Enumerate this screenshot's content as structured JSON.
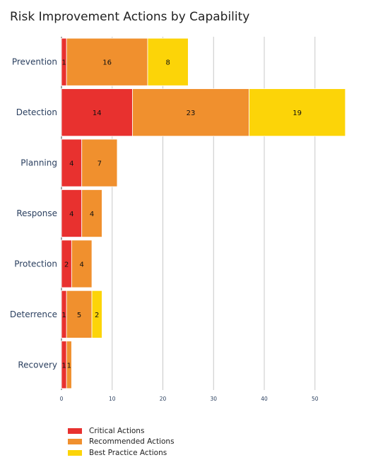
{
  "chart_data": {
    "type": "bar",
    "orientation": "horizontal",
    "stacked": true,
    "title": "Risk Improvement Actions by Capability",
    "categories": [
      "Prevention",
      "Detection",
      "Planning",
      "Response",
      "Protection",
      "Deterrence",
      "Recovery"
    ],
    "series": [
      {
        "name": "Critical Actions",
        "color": "#e8312f",
        "values": [
          1,
          14,
          4,
          4,
          2,
          1,
          1
        ]
      },
      {
        "name": "Recommended Actions",
        "color": "#f0902e",
        "values": [
          16,
          23,
          7,
          4,
          4,
          5,
          1
        ]
      },
      {
        "name": "Best Practice Actions",
        "color": "#fcd408",
        "values": [
          8,
          19,
          0,
          0,
          0,
          2,
          0
        ]
      }
    ],
    "xlim": [
      0,
      57
    ],
    "xticks": [
      0,
      10,
      20,
      30,
      40,
      50
    ],
    "grid": true,
    "legend_position": "bottom-left"
  }
}
